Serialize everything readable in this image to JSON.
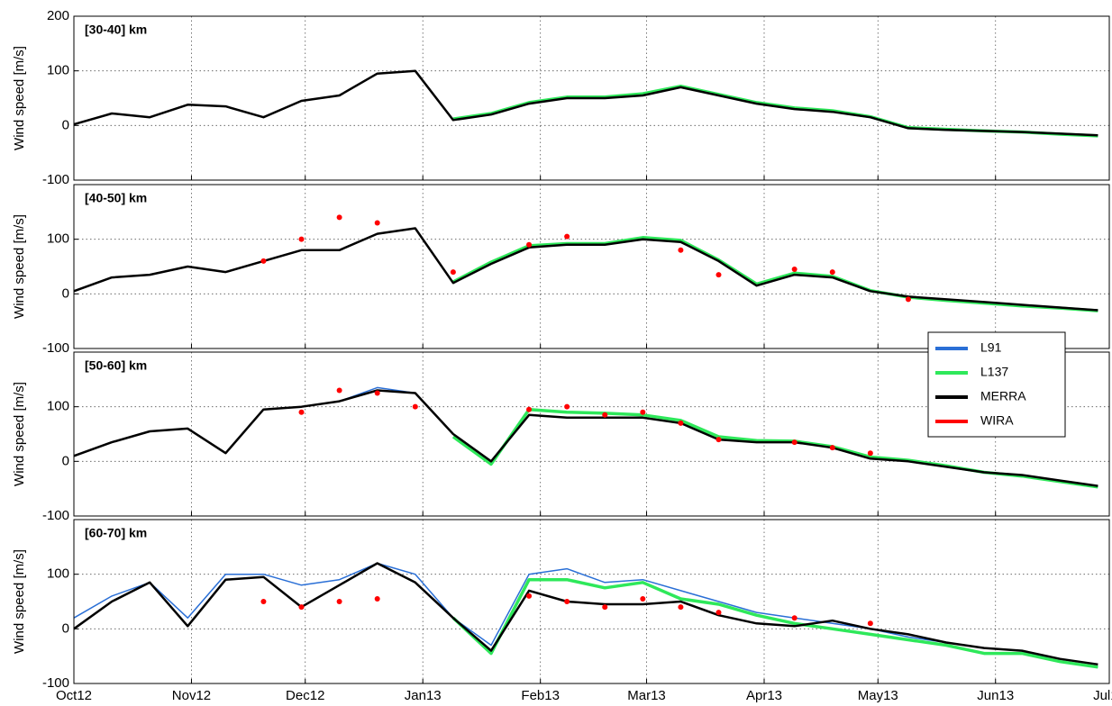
{
  "chart_data": [
    {
      "type": "line",
      "title": "[30-40] km",
      "ylabel": "Wind speed [m/s]",
      "ylim": [
        -100,
        200
      ],
      "yticks": [
        -100,
        0,
        100,
        200
      ],
      "grid": true,
      "series": [
        {
          "color": "#2a6fd6",
          "values": [
            2,
            22,
            15,
            38,
            35,
            15,
            45,
            55,
            95,
            100,
            10,
            20,
            40,
            50,
            50,
            55,
            70,
            55,
            40,
            30,
            25,
            15,
            -5,
            -8,
            -10,
            -12,
            -15,
            -18
          ]
        },
        {
          "color": "#2ee85a",
          "values": [
            null,
            null,
            null,
            null,
            null,
            null,
            null,
            null,
            null,
            null,
            12,
            22,
            42,
            52,
            52,
            58,
            72,
            57,
            42,
            32,
            27,
            16,
            -4,
            -7,
            -10,
            -12,
            -16,
            -19
          ]
        },
        {
          "color": "#000000",
          "values": [
            2,
            22,
            15,
            38,
            35,
            15,
            45,
            55,
            95,
            100,
            10,
            20,
            40,
            50,
            50,
            55,
            70,
            55,
            40,
            30,
            25,
            15,
            -5,
            -8,
            -10,
            -12,
            -15,
            -18
          ]
        }
      ]
    },
    {
      "type": "line",
      "title": "[40-50] km",
      "ylabel": "Wind speed [m/s]",
      "ylim": [
        -100,
        200
      ],
      "yticks": [
        -100,
        0,
        100
      ],
      "grid": true,
      "series": [
        {
          "color": "#2a6fd6",
          "values": [
            5,
            30,
            35,
            50,
            40,
            60,
            80,
            80,
            110,
            120,
            20,
            55,
            85,
            90,
            90,
            100,
            95,
            60,
            15,
            35,
            30,
            5,
            -5,
            -10,
            -15,
            -20,
            -25,
            -30
          ]
        },
        {
          "color": "#2ee85a",
          "values": [
            null,
            null,
            null,
            null,
            null,
            null,
            null,
            null,
            null,
            null,
            22,
            58,
            88,
            92,
            92,
            103,
            98,
            62,
            18,
            38,
            32,
            6,
            -6,
            -12,
            -17,
            -22,
            -26,
            -31
          ]
        },
        {
          "color": "#000000",
          "values": [
            5,
            30,
            35,
            50,
            40,
            60,
            80,
            80,
            110,
            120,
            20,
            55,
            85,
            90,
            90,
            100,
            95,
            60,
            15,
            35,
            30,
            5,
            -5,
            -10,
            -15,
            -20,
            -25,
            -30
          ]
        },
        {
          "color": "#ff0000",
          "values": [
            null,
            null,
            null,
            null,
            null,
            60,
            100,
            140,
            130,
            null,
            40,
            null,
            90,
            105,
            null,
            null,
            80,
            35,
            null,
            45,
            40,
            null,
            -10,
            null,
            null,
            null,
            null,
            null
          ]
        }
      ]
    },
    {
      "type": "line",
      "title": "[50-60] km",
      "ylabel": "Wind speed [m/s]",
      "ylim": [
        -100,
        200
      ],
      "yticks": [
        -100,
        0,
        100
      ],
      "grid": true,
      "legend": "upper right",
      "series": [
        {
          "name": "L91",
          "color": "#2a6fd6",
          "values": [
            10,
            35,
            55,
            60,
            15,
            95,
            100,
            110,
            135,
            125,
            50,
            0,
            85,
            80,
            80,
            80,
            70,
            40,
            35,
            35,
            25,
            5,
            0,
            -10,
            -20,
            -25,
            -35,
            -45
          ]
        },
        {
          "name": "L137",
          "color": "#2ee85a",
          "values": [
            null,
            null,
            null,
            null,
            null,
            null,
            null,
            null,
            null,
            null,
            45,
            -5,
            95,
            90,
            88,
            85,
            75,
            45,
            38,
            37,
            27,
            8,
            2,
            -8,
            -20,
            -27,
            -37,
            -47
          ]
        },
        {
          "name": "MERRA",
          "color": "#000000",
          "values": [
            10,
            35,
            55,
            60,
            15,
            95,
            100,
            110,
            130,
            125,
            50,
            0,
            85,
            80,
            80,
            80,
            70,
            40,
            35,
            35,
            25,
            5,
            0,
            -10,
            -20,
            -25,
            -35,
            -45
          ]
        },
        {
          "name": "WIRA",
          "color": "#ff0000",
          "values": [
            null,
            null,
            null,
            null,
            null,
            null,
            90,
            130,
            125,
            100,
            null,
            null,
            95,
            100,
            85,
            90,
            70,
            40,
            null,
            35,
            25,
            15,
            null,
            null,
            null,
            null,
            null,
            null
          ]
        }
      ]
    },
    {
      "type": "line",
      "title": "[60-70] km",
      "ylabel": "Wind speed [m/s]",
      "ylim": [
        -100,
        200
      ],
      "yticks": [
        -100,
        0,
        100
      ],
      "grid": true,
      "x": [
        0,
        10,
        20,
        30,
        40,
        50,
        60,
        70,
        80,
        90,
        100,
        110,
        120,
        130,
        140,
        150,
        160,
        170,
        180,
        190,
        200,
        210,
        220,
        230,
        240,
        250,
        260,
        270
      ],
      "xlim": [
        0,
        273
      ],
      "xticks": [
        {
          "value": 0,
          "label": "Oct12"
        },
        {
          "value": 31,
          "label": "Nov12"
        },
        {
          "value": 61,
          "label": "Dec12"
        },
        {
          "value": 92,
          "label": "Jan13"
        },
        {
          "value": 123,
          "label": "Feb13"
        },
        {
          "value": 151,
          "label": "Mar13"
        },
        {
          "value": 182,
          "label": "Apr13"
        },
        {
          "value": 212,
          "label": "May13"
        },
        {
          "value": 243,
          "label": "Jun13"
        },
        {
          "value": 273,
          "label": "Jul13"
        }
      ],
      "series": [
        {
          "color": "#2a6fd6",
          "values": [
            20,
            60,
            85,
            20,
            100,
            100,
            80,
            90,
            120,
            100,
            20,
            -30,
            100,
            110,
            85,
            90,
            70,
            50,
            30,
            20,
            10,
            0,
            -15,
            -25,
            -35,
            -40,
            -60,
            -70
          ]
        },
        {
          "color": "#2ee85a",
          "values": [
            null,
            null,
            null,
            null,
            null,
            null,
            null,
            null,
            null,
            null,
            20,
            -45,
            90,
            90,
            75,
            85,
            55,
            45,
            25,
            10,
            0,
            -10,
            -20,
            -30,
            -45,
            -45,
            -60,
            -70
          ]
        },
        {
          "color": "#000000",
          "values": [
            0,
            50,
            85,
            5,
            90,
            95,
            40,
            80,
            120,
            85,
            20,
            -40,
            70,
            50,
            45,
            45,
            50,
            25,
            10,
            5,
            15,
            0,
            -10,
            -25,
            -35,
            -40,
            -55,
            -65
          ]
        },
        {
          "color": "#ff0000",
          "values": [
            null,
            null,
            null,
            null,
            null,
            50,
            40,
            50,
            55,
            null,
            null,
            null,
            60,
            50,
            40,
            55,
            40,
            30,
            null,
            20,
            null,
            10,
            null,
            null,
            null,
            null,
            null,
            null
          ]
        }
      ]
    }
  ]
}
